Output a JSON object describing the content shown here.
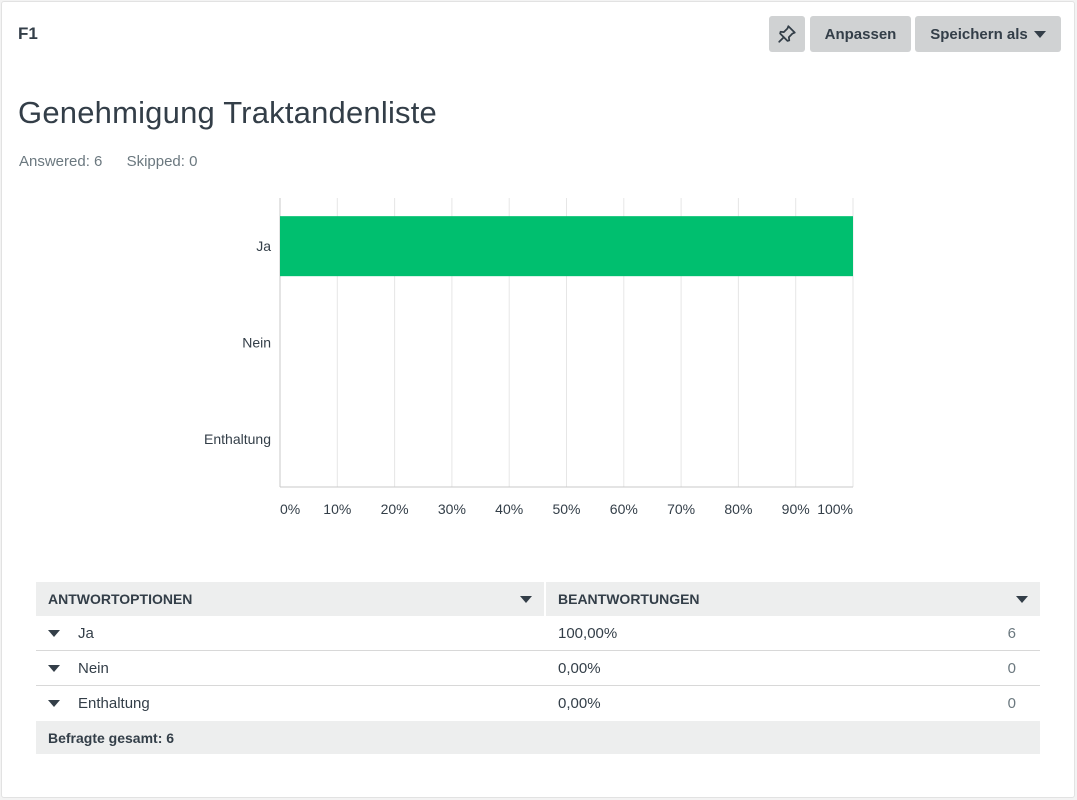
{
  "header": {
    "question_number": "F1",
    "pin_icon": "pushpin-icon",
    "customize_label": "Anpassen",
    "save_as_label": "Speichern als"
  },
  "question": {
    "title": "Genehmigung Traktandenliste",
    "answered": "Answered: 6",
    "skipped": "Skipped: 0"
  },
  "colors": {
    "bar": "#00bf6f",
    "button_bg": "#d0d2d3",
    "table_header_bg": "#edeeee"
  },
  "chart_data": {
    "type": "bar",
    "orientation": "horizontal",
    "categories": [
      "Ja",
      "Nein",
      "Enthaltung"
    ],
    "values": [
      100,
      0,
      0
    ],
    "xlim": [
      0,
      100
    ],
    "x_ticks": [
      "0%",
      "10%",
      "20%",
      "30%",
      "40%",
      "50%",
      "60%",
      "70%",
      "80%",
      "90%",
      "100%"
    ],
    "grid": true
  },
  "table": {
    "col_options": "ANTWORTOPTIONEN",
    "col_responses": "BEANTWORTUNGEN",
    "rows": [
      {
        "option": "Ja",
        "percent": "100,00%",
        "count": "6"
      },
      {
        "option": "Nein",
        "percent": "0,00%",
        "count": "0"
      },
      {
        "option": "Enthaltung",
        "percent": "0,00%",
        "count": "0"
      }
    ],
    "total": "Befragte gesamt: 6"
  }
}
